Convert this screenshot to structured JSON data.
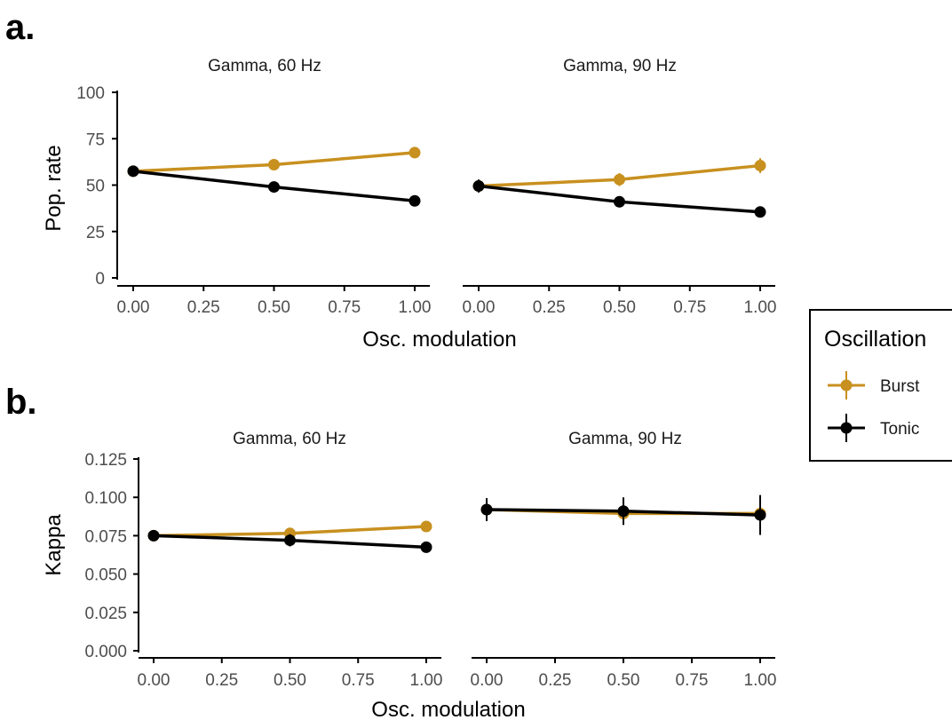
{
  "colors": {
    "burst": "#c8901f",
    "tonic": "#000000"
  },
  "legend": {
    "title": "Oscillation",
    "entries": [
      {
        "label": "Burst",
        "color": "#c8901f"
      },
      {
        "label": "Tonic",
        "color": "#000000"
      }
    ]
  },
  "chart_data": [
    {
      "panel_label": "a.",
      "type": "line",
      "ylabel": "Pop. rate",
      "xlabel": "Osc. modulation",
      "ylim": [
        0,
        100
      ],
      "yticks": [
        0,
        25,
        50,
        75,
        100
      ],
      "ytick_labels": [
        "0",
        "25",
        "50",
        "75",
        "100"
      ],
      "xlim": [
        0,
        1
      ],
      "xticks": [
        0,
        0.25,
        0.5,
        0.75,
        1
      ],
      "xtick_labels": [
        "0.00",
        "0.25",
        "0.50",
        "0.75",
        "1.00"
      ],
      "grid": false,
      "facets": [
        {
          "title": "Gamma, 60 Hz",
          "x": [
            0,
            0.5,
            1
          ],
          "series": [
            {
              "name": "Burst",
              "values": [
                57.5,
                61.0,
                67.5
              ],
              "errors": [
                2.0,
                2.5,
                3.0
              ]
            },
            {
              "name": "Tonic",
              "values": [
                57.5,
                49.0,
                41.5
              ],
              "errors": [
                2.0,
                2.0,
                2.0
              ]
            }
          ]
        },
        {
          "title": "Gamma, 90 Hz",
          "x": [
            0,
            0.5,
            1
          ],
          "series": [
            {
              "name": "Burst",
              "values": [
                49.5,
                53.0,
                60.5
              ],
              "errors": [
                2.5,
                3.5,
                4.0
              ]
            },
            {
              "name": "Tonic",
              "values": [
                49.5,
                41.0,
                35.5
              ],
              "errors": [
                3.5,
                3.0,
                2.5
              ]
            }
          ]
        }
      ]
    },
    {
      "panel_label": "b.",
      "type": "line",
      "ylabel": "Kappa",
      "xlabel": "Osc. modulation",
      "ylim": [
        0,
        0.125
      ],
      "yticks": [
        0,
        0.025,
        0.05,
        0.075,
        0.1,
        0.125
      ],
      "ytick_labels": [
        "0.000",
        "0.025",
        "0.050",
        "0.075",
        "0.100",
        "0.125"
      ],
      "xlim": [
        0,
        1
      ],
      "xticks": [
        0,
        0.25,
        0.5,
        0.75,
        1
      ],
      "xtick_labels": [
        "0.00",
        "0.25",
        "0.50",
        "0.75",
        "1.00"
      ],
      "grid": false,
      "facets": [
        {
          "title": "Gamma, 60 Hz",
          "x": [
            0,
            0.5,
            1
          ],
          "series": [
            {
              "name": "Burst",
              "values": [
                0.075,
                0.0765,
                0.081
              ],
              "errors": [
                0.002,
                0.002,
                0.0025
              ]
            },
            {
              "name": "Tonic",
              "values": [
                0.075,
                0.072,
                0.0675
              ],
              "errors": [
                0.002,
                0.004,
                0.003
              ]
            }
          ]
        },
        {
          "title": "Gamma, 90 Hz",
          "x": [
            0,
            0.5,
            1
          ],
          "series": [
            {
              "name": "Burst",
              "values": [
                0.092,
                0.0895,
                0.0895
              ],
              "errors": [
                0.004,
                0.004,
                0.004
              ]
            },
            {
              "name": "Tonic",
              "values": [
                0.092,
                0.091,
                0.0885
              ],
              "errors": [
                0.0075,
                0.009,
                0.013
              ]
            }
          ]
        }
      ]
    }
  ]
}
